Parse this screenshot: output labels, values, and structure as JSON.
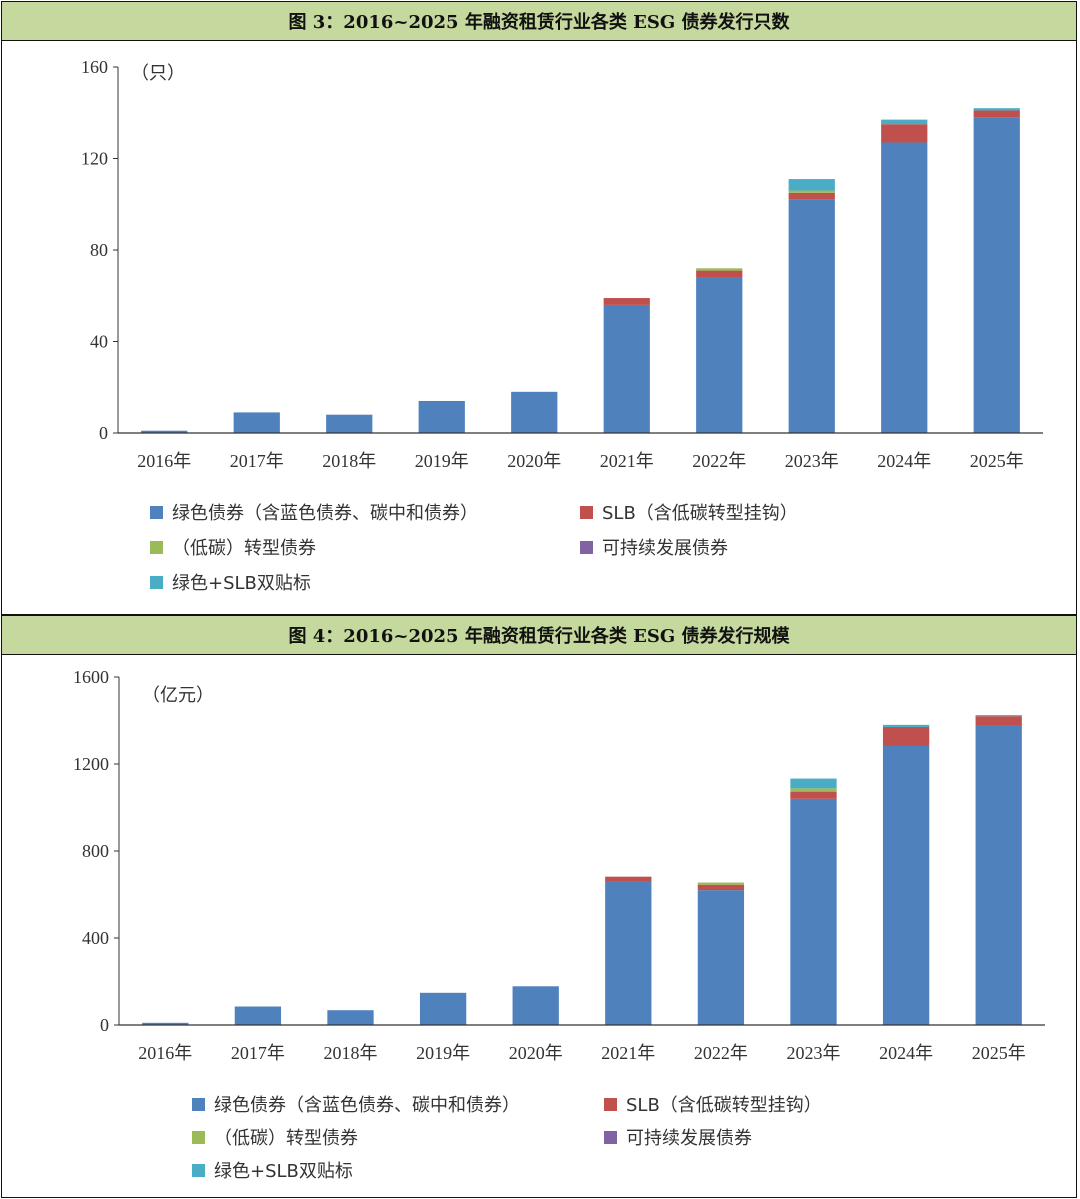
{
  "chart_data": [
    {
      "type": "bar",
      "stacked": true,
      "title": "图 3：2016~2025 年融资租赁行业各类 ESG 债券发行只数",
      "unit": "（只）",
      "categories": [
        "2016年",
        "2017年",
        "2018年",
        "2019年",
        "2020年",
        "2021年",
        "2022年",
        "2023年",
        "2024年",
        "2025年"
      ],
      "ylim": [
        0,
        160
      ],
      "yticks": [
        0,
        40,
        80,
        120,
        160
      ],
      "grid": false,
      "legend_position": "bottom",
      "series": [
        {
          "name": "绿色债券（含蓝色债券、碳中和债券）",
          "color": "#4f81bd",
          "values": [
            1,
            9,
            8,
            14,
            18,
            56,
            68,
            102,
            127,
            138
          ]
        },
        {
          "name": "SLB（含低碳转型挂钩）",
          "color": "#c0504d",
          "values": [
            0,
            0,
            0,
            0,
            0,
            3,
            3,
            3,
            8,
            3
          ]
        },
        {
          "name": "（低碳）转型债券",
          "color": "#9bbb59",
          "values": [
            0,
            0,
            0,
            0,
            0,
            0,
            1,
            1,
            0,
            0
          ]
        },
        {
          "name": "可持续发展债券",
          "color": "#8064a2",
          "values": [
            0,
            0,
            0,
            0,
            0,
            0,
            0,
            0,
            0,
            0
          ]
        },
        {
          "name": "绿色+SLB双贴标",
          "color": "#4bacc6",
          "values": [
            0,
            0,
            0,
            0,
            0,
            0,
            0,
            5,
            2,
            1
          ]
        }
      ]
    },
    {
      "type": "bar",
      "stacked": true,
      "title": "图 4：2016~2025 年融资租赁行业各类 ESG 债券发行规模",
      "unit": "（亿元）",
      "categories": [
        "2016年",
        "2017年",
        "2018年",
        "2019年",
        "2020年",
        "2021年",
        "2022年",
        "2023年",
        "2024年",
        "2025年"
      ],
      "ylim": [
        0,
        1600
      ],
      "yticks": [
        0,
        400,
        800,
        1200,
        1600
      ],
      "grid": false,
      "legend_position": "bottom",
      "series": [
        {
          "name": "绿色债券（含蓝色债券、碳中和债券）",
          "color": "#4f81bd",
          "values": [
            10,
            85,
            68,
            148,
            178,
            660,
            620,
            1040,
            1285,
            1375
          ]
        },
        {
          "name": "SLB（含低碳转型挂钩）",
          "color": "#c0504d",
          "values": [
            0,
            0,
            0,
            0,
            0,
            22,
            25,
            33,
            85,
            45
          ]
        },
        {
          "name": "（低碳）转型债券",
          "color": "#9bbb59",
          "values": [
            0,
            0,
            0,
            0,
            0,
            0,
            10,
            15,
            0,
            0
          ]
        },
        {
          "name": "可持续发展债券",
          "color": "#8064a2",
          "values": [
            0,
            0,
            0,
            0,
            0,
            0,
            0,
            0,
            0,
            0
          ]
        },
        {
          "name": "绿色+SLB双贴标",
          "color": "#4bacc6",
          "values": [
            0,
            0,
            0,
            0,
            0,
            0,
            0,
            45,
            10,
            5
          ]
        }
      ]
    }
  ]
}
